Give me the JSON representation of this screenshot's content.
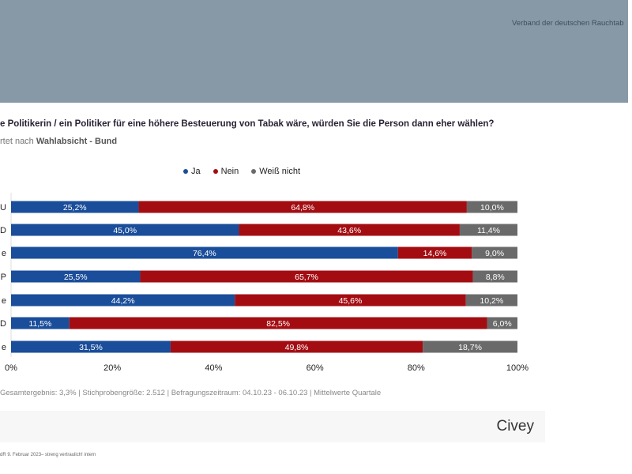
{
  "header": {
    "org": "Verband der deutschen Rauchtab"
  },
  "chart_data": {
    "type": "bar",
    "stacked": true,
    "orientation": "horizontal",
    "title": "e Politikerin / ein Politiker für eine höhere Besteuerung von Tabak wäre, würden Sie die Person dann eher wählen?",
    "subtitle_prefix": "rtet nach ",
    "subtitle_bold": "Wahlabsicht - Bund",
    "categories": [
      "U",
      "D",
      "e",
      "P",
      "e",
      "D",
      "e"
    ],
    "series": [
      {
        "name": "Ja",
        "color": "#1a4d9a",
        "values": [
          25.2,
          45.0,
          76.4,
          25.5,
          44.2,
          11.5,
          31.5
        ],
        "labels": [
          "25,2%",
          "45,0%",
          "76,4%",
          "25,5%",
          "44,2%",
          "11,5%",
          "31,5%"
        ]
      },
      {
        "name": "Nein",
        "color": "#a30d12",
        "values": [
          64.8,
          43.6,
          14.6,
          65.7,
          45.6,
          82.5,
          49.8
        ],
        "labels": [
          "64,8%",
          "43,6%",
          "14,6%",
          "65,7%",
          "45,6%",
          "82,5%",
          "49,8%"
        ]
      },
      {
        "name": "Weiß nicht",
        "color": "#6a6a6a",
        "values": [
          10.0,
          11.4,
          9.0,
          8.8,
          10.2,
          6.0,
          18.7
        ],
        "labels": [
          "10,0%",
          "11,4%",
          "9,0%",
          "8,8%",
          "10,2%",
          "6,0%",
          "18,7%"
        ]
      }
    ],
    "xlim": [
      0,
      100
    ],
    "xticks": [
      "0%",
      "20%",
      "40%",
      "60%",
      "80%",
      "100%"
    ],
    "legend_position": "top"
  },
  "note": "Gesamtergebnis: 3,3% | Stichprobengröße: 2.512 | Befragungszeitraum: 04.10.23 - 06.10.23 | Mittelwerte Quartale",
  "brand": "Civey",
  "confidential": "dR 9. Februar 2023– streng vertraulich! intern"
}
